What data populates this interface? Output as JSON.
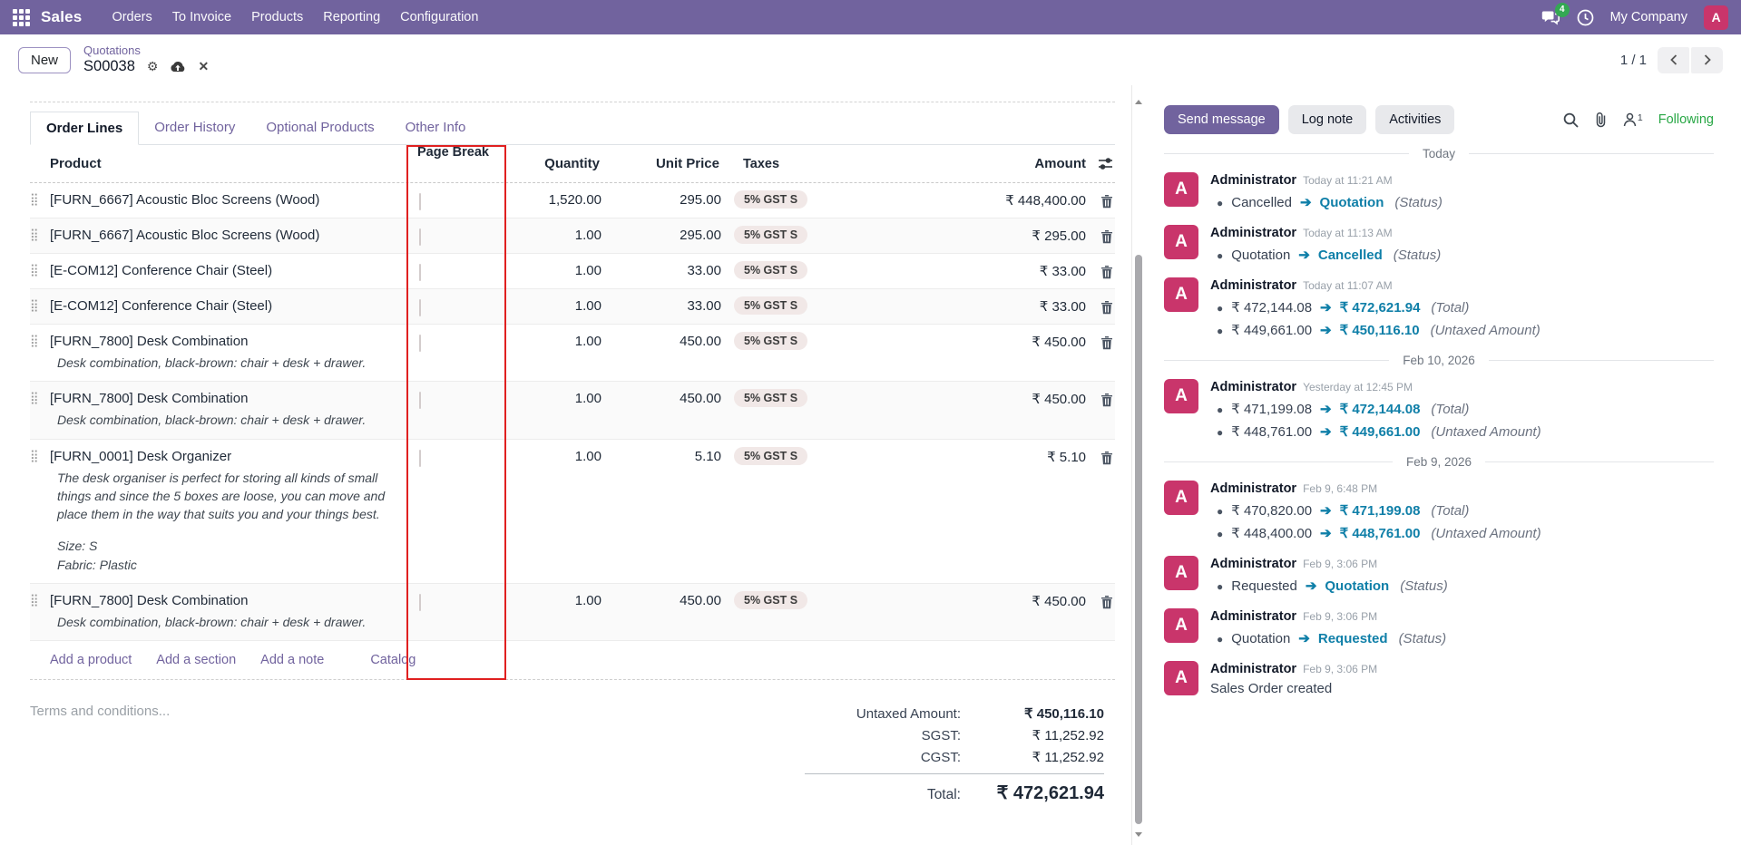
{
  "colors": {
    "primary": "#71639e",
    "avatar": "#c9356b",
    "tracking_new": "#0f7fa8",
    "highlight_red": "#e02020",
    "following_green": "#28a745",
    "badge_green": "#34a853"
  },
  "navbar": {
    "app_name": "Sales",
    "menus": [
      "Orders",
      "To Invoice",
      "Products",
      "Reporting",
      "Configuration"
    ],
    "message_count": "4",
    "company": "My Company",
    "avatar_letter": "A"
  },
  "control_panel": {
    "new_button": "New",
    "breadcrumb_parent": "Quotations",
    "record_name": "S00038",
    "pager": "1 / 1"
  },
  "tabs": [
    {
      "label": "Order Lines"
    },
    {
      "label": "Order History"
    },
    {
      "label": "Optional Products"
    },
    {
      "label": "Other Info"
    }
  ],
  "order_lines": {
    "columns": {
      "product": "Product",
      "page_break": "Page Break",
      "quantity": "Quantity",
      "unit_price": "Unit Price",
      "taxes": "Taxes",
      "amount": "Amount"
    },
    "rows": [
      {
        "product": "[FURN_6667] Acoustic Bloc Screens (Wood)",
        "description_lines": [],
        "quantity": "1,520.00",
        "unit_price": "295.00",
        "tax": "5% GST S",
        "amount": "₹ 448,400.00"
      },
      {
        "product": "[FURN_6667] Acoustic Bloc Screens (Wood)",
        "description_lines": [],
        "quantity": "1.00",
        "unit_price": "295.00",
        "tax": "5% GST S",
        "amount": "₹ 295.00"
      },
      {
        "product": "[E-COM12] Conference Chair (Steel)",
        "description_lines": [],
        "quantity": "1.00",
        "unit_price": "33.00",
        "tax": "5% GST S",
        "amount": "₹ 33.00"
      },
      {
        "product": "[E-COM12] Conference Chair (Steel)",
        "description_lines": [],
        "quantity": "1.00",
        "unit_price": "33.00",
        "tax": "5% GST S",
        "amount": "₹ 33.00"
      },
      {
        "product": "[FURN_7800] Desk Combination",
        "description_lines": [
          "Desk combination, black-brown: chair + desk + drawer."
        ],
        "quantity": "1.00",
        "unit_price": "450.00",
        "tax": "5% GST S",
        "amount": "₹ 450.00"
      },
      {
        "product": "[FURN_7800] Desk Combination",
        "description_lines": [
          "Desk combination, black-brown: chair + desk + drawer."
        ],
        "quantity": "1.00",
        "unit_price": "450.00",
        "tax": "5% GST S",
        "amount": "₹ 450.00"
      },
      {
        "product": "[FURN_0001] Desk Organizer",
        "description_lines": [
          "The desk organiser is perfect for storing all kinds of small things and since the 5 boxes are loose, you can move and place them in the way that suits you and your things best.",
          "",
          "Size: S",
          "Fabric: Plastic"
        ],
        "quantity": "1.00",
        "unit_price": "5.10",
        "tax": "5% GST S",
        "amount": "₹ 5.10"
      },
      {
        "product": "[FURN_7800] Desk Combination",
        "description_lines": [
          "Desk combination, black-brown: chair + desk + drawer."
        ],
        "quantity": "1.00",
        "unit_price": "450.00",
        "tax": "5% GST S",
        "amount": "₹ 450.00"
      }
    ],
    "footer_links": [
      "Add a product",
      "Add a section",
      "Add a note",
      "Catalog"
    ]
  },
  "terms_placeholder": "Terms and conditions...",
  "totals": {
    "rows": [
      {
        "label": "Untaxed Amount:",
        "value": "₹ 450,116.10"
      },
      {
        "label": "SGST:",
        "value": "₹ 11,252.92"
      },
      {
        "label": "CGST:",
        "value": "₹ 11,252.92"
      },
      {
        "label": "Total:",
        "value": "₹ 472,621.94"
      }
    ]
  },
  "chatter": {
    "send_label": "Send message",
    "log_label": "Log note",
    "activities_label": "Activities",
    "followers_count": "1",
    "following_label": "Following",
    "avatar_letter": "A",
    "feed": [
      {
        "type": "divider",
        "label": "Today"
      },
      {
        "type": "message",
        "author": "Administrator",
        "time": "Today at 11:21 AM",
        "lines": [
          {
            "old": "Cancelled",
            "new": "Quotation",
            "field": "(Status)"
          }
        ]
      },
      {
        "type": "message",
        "author": "Administrator",
        "time": "Today at 11:13 AM",
        "lines": [
          {
            "old": "Quotation",
            "new": "Cancelled",
            "field": "(Status)"
          }
        ]
      },
      {
        "type": "message",
        "author": "Administrator",
        "time": "Today at 11:07 AM",
        "lines": [
          {
            "old": "₹ 472,144.08",
            "new": "₹ 472,621.94",
            "field": "(Total)"
          },
          {
            "old": "₹ 449,661.00",
            "new": "₹ 450,116.10",
            "field": "(Untaxed Amount)"
          }
        ]
      },
      {
        "type": "divider",
        "label": "Feb 10, 2026"
      },
      {
        "type": "message",
        "author": "Administrator",
        "time": "Yesterday at 12:45 PM",
        "lines": [
          {
            "old": "₹ 471,199.08",
            "new": "₹ 472,144.08",
            "field": "(Total)"
          },
          {
            "old": "₹ 448,761.00",
            "new": "₹ 449,661.00",
            "field": "(Untaxed Amount)"
          }
        ]
      },
      {
        "type": "divider",
        "label": "Feb 9, 2026"
      },
      {
        "type": "message",
        "author": "Administrator",
        "time": "Feb 9, 6:48 PM",
        "lines": [
          {
            "old": "₹ 470,820.00",
            "new": "₹ 471,199.08",
            "field": "(Total)"
          },
          {
            "old": "₹ 448,400.00",
            "new": "₹ 448,761.00",
            "field": "(Untaxed Amount)"
          }
        ]
      },
      {
        "type": "message",
        "author": "Administrator",
        "time": "Feb 9, 3:06 PM",
        "lines": [
          {
            "old": "Requested",
            "new": "Quotation",
            "field": "(Status)"
          }
        ]
      },
      {
        "type": "message",
        "author": "Administrator",
        "time": "Feb 9, 3:06 PM",
        "lines": [
          {
            "old": "Quotation",
            "new": "Requested",
            "field": "(Status)"
          }
        ]
      },
      {
        "type": "message",
        "author": "Administrator",
        "time": "Feb 9, 3:06 PM",
        "text": "Sales Order created"
      }
    ]
  }
}
